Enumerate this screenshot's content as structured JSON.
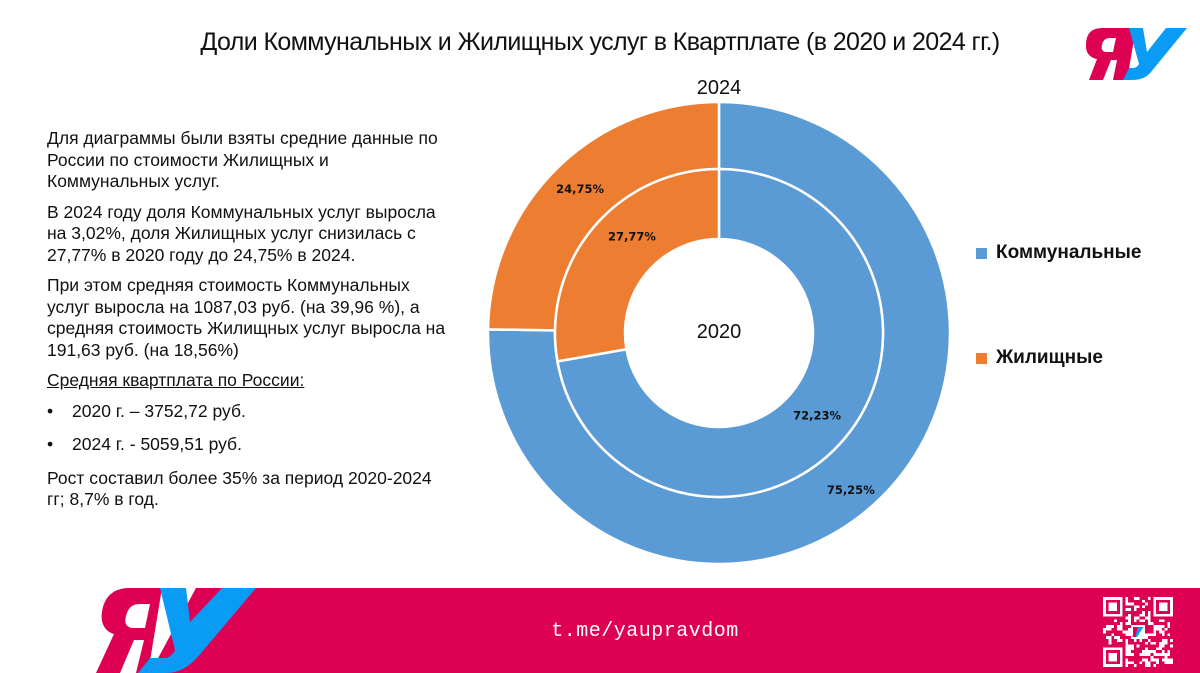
{
  "header": {
    "title": "Доли Коммунальных и Жилищных услуг в Квартплате (в 2020 и 2024 гг.)",
    "logo": "ya-u-logo"
  },
  "text": {
    "p1": "Для диаграммы были взяты средние данные по России по стоимости Жилищных и Коммунальных услуг.",
    "p2": "В 2024 году доля Коммунальных услуг выросла на 3,02%, доля Жилищных услуг снизилась с 27,77% в 2020 году до 24,75% в 2024.",
    "p3": "При этом средняя стоимость Коммунальных услуг выросла на 1087,03 руб. (на 39,96 %), а средняя стоимость Жилищных услуг выросла на 191,63 руб. (на 18,56%)",
    "subheading": "Средняя квартплата по России:",
    "bullets": [
      "2020 г. – 3752,72 руб.",
      "2024 г. - 5059,51 руб."
    ],
    "p4": "Рост составил более 35% за период 2020-2024 гг; 8,7% в год."
  },
  "chart_data": {
    "type": "pie",
    "subtype": "doughnut (nested rings)",
    "title": "Доли Коммунальных и Жилищных услуг в Квартплате (в 2020 и 2024 гг.)",
    "categories": [
      "Коммунальные",
      "Жилищные"
    ],
    "colors": [
      "#5B9BD5",
      "#ED7D31"
    ],
    "series": [
      {
        "name": "2024",
        "ring": "outer",
        "values": [
          75.25,
          24.75
        ],
        "labels": [
          "75,25%",
          "24,75%"
        ]
      },
      {
        "name": "2020",
        "ring": "inner",
        "values": [
          72.23,
          27.77
        ],
        "labels": [
          "72,23%",
          "27,77%"
        ]
      }
    ],
    "ring_labels": {
      "outer": "2024",
      "inner": "2020"
    },
    "legend": {
      "position": "right",
      "entries": [
        "Коммунальные",
        "Жилищные"
      ]
    },
    "units": "%"
  },
  "footer": {
    "url": "t.me/yaupravdom",
    "qr": "qr-code",
    "colors": {
      "band": "#de0052",
      "logo_pink": "#de0052",
      "logo_blue": "#0a9bf5"
    }
  }
}
